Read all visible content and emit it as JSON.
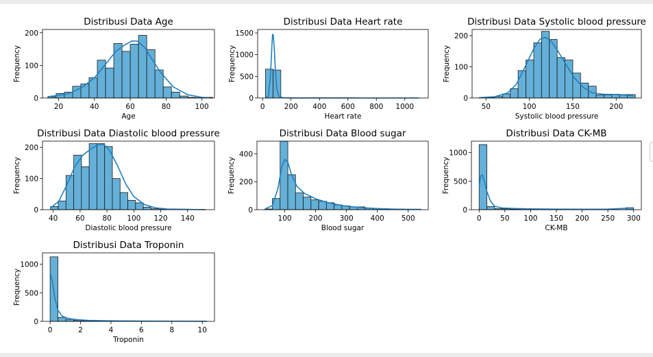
{
  "chart_data": [
    {
      "type": "bar",
      "title": "Distribusi Data Age",
      "xlabel": "Age",
      "ylabel": "Frequency",
      "xlim": [
        11,
        107
      ],
      "ylim": [
        0,
        210
      ],
      "xticks": [
        20,
        40,
        60,
        80,
        100
      ],
      "yticks": [
        0,
        100,
        200
      ],
      "bin_edges": [
        14,
        18.6,
        23.2,
        27.8,
        32.4,
        37,
        41.6,
        46.2,
        50.8,
        55.4,
        60,
        64.6,
        69.2,
        73.8,
        78.4,
        83,
        87.6,
        92.2,
        96.8,
        101.4,
        106
      ],
      "values": [
        4,
        14,
        18,
        36,
        43,
        62,
        116,
        92,
        167,
        143,
        165,
        192,
        148,
        86,
        34,
        18,
        6,
        2,
        1,
        2
      ],
      "kde": {
        "x": [
          14,
          25,
          33,
          40,
          46,
          52,
          57,
          61,
          64,
          68,
          72,
          77,
          84,
          92,
          100,
          104
        ],
        "y": [
          4,
          12,
          32,
          62,
          102,
          143,
          163,
          175,
          174,
          155,
          120,
          78,
          34,
          10,
          2,
          1
        ]
      }
    },
    {
      "type": "bar",
      "title": "Distribusi Data Heart rate",
      "xlabel": "Heart rate",
      "ylabel": "Frequency",
      "xlim": [
        -35,
        1165
      ],
      "ylim": [
        0,
        1580
      ],
      "xticks": [
        0,
        200,
        400,
        600,
        800,
        1000
      ],
      "yticks": [
        0,
        500,
        1000,
        1500
      ],
      "bin_edges": [
        20,
        74,
        128,
        182,
        236,
        290,
        344,
        398,
        452,
        506,
        560,
        614,
        668,
        722,
        776,
        830,
        884,
        938,
        992,
        1046,
        1100
      ],
      "values": [
        665,
        645,
        0,
        0,
        0,
        0,
        0,
        0,
        0,
        0,
        0,
        0,
        0,
        0,
        0,
        0,
        0,
        0,
        0,
        0
      ],
      "kde": {
        "x": [
          20,
          40,
          55,
          65,
          70,
          75,
          82,
          90,
          100,
          115,
          140,
          200,
          400,
          700,
          1100
        ],
        "y": [
          0,
          40,
          500,
          1200,
          1470,
          1450,
          1150,
          650,
          200,
          40,
          8,
          2,
          1,
          0,
          0
        ]
      }
    },
    {
      "type": "bar",
      "title": "Distribusi Data Systolic blood pressure",
      "xlabel": "Systolic blood pressure",
      "ylabel": "Frequency",
      "xlim": [
        34,
        229
      ],
      "ylim": [
        0,
        220
      ],
      "xticks": [
        50,
        100,
        150,
        200
      ],
      "yticks": [
        0,
        100,
        200
      ],
      "bin_edges": [
        42,
        51,
        60,
        69,
        78,
        87,
        96,
        105,
        114,
        123,
        132,
        141,
        150,
        159,
        168,
        177,
        186,
        195,
        204,
        213,
        222
      ],
      "values": [
        1,
        2,
        5,
        13,
        30,
        88,
        122,
        177,
        214,
        188,
        130,
        122,
        80,
        48,
        38,
        10,
        10,
        12,
        11,
        11
      ],
      "kde": {
        "x": [
          42,
          60,
          75,
          85,
          95,
          105,
          112,
          118,
          124,
          132,
          142,
          152,
          162,
          172,
          185,
          200,
          212,
          220
        ],
        "y": [
          1,
          4,
          16,
          44,
          100,
          158,
          188,
          195,
          186,
          155,
          108,
          64,
          34,
          17,
          12,
          11,
          9,
          6
        ]
      }
    },
    {
      "type": "bar",
      "title": "Distribusi Data Diastolic blood pressure",
      "xlabel": "Diastolic blood pressure",
      "ylabel": "Frequency",
      "xlim": [
        32,
        160
      ],
      "ylim": [
        0,
        220
      ],
      "xticks": [
        40,
        60,
        80,
        100,
        120,
        140
      ],
      "yticks": [
        0,
        100,
        200
      ],
      "bin_edges": [
        38,
        43.75,
        49.5,
        55.25,
        61,
        66.75,
        72.5,
        78.25,
        84,
        89.75,
        95.5,
        101.25,
        107,
        112.75,
        118.5,
        124.25,
        130,
        135.75,
        141.5,
        147.25,
        153
      ],
      "values": [
        10,
        28,
        110,
        175,
        138,
        212,
        212,
        203,
        100,
        55,
        30,
        22,
        8,
        3,
        1,
        0,
        0,
        0,
        0,
        1
      ],
      "kde": {
        "x": [
          38,
          44,
          50,
          56,
          62,
          68,
          74,
          78,
          82,
          88,
          94,
          100,
          108,
          116,
          125,
          140,
          153
        ],
        "y": [
          6,
          26,
          78,
          138,
          175,
          195,
          210,
          208,
          190,
          140,
          82,
          42,
          16,
          6,
          2,
          1,
          0
        ]
      }
    },
    {
      "type": "bar",
      "title": "Distribusi Data Blood sugar",
      "xlabel": "Blood sugar",
      "ylabel": "Frequency",
      "xlim": [
        10,
        565
      ],
      "ylim": [
        0,
        490
      ],
      "xticks": [
        100,
        200,
        300,
        400,
        500
      ],
      "yticks": [
        0,
        200,
        400
      ],
      "bin_edges": [
        35,
        60,
        85,
        110,
        135,
        160,
        185,
        210,
        235,
        260,
        285,
        310,
        335,
        360,
        385,
        410,
        435,
        460,
        485,
        510,
        541
      ],
      "values": [
        5,
        80,
        490,
        250,
        120,
        90,
        70,
        60,
        50,
        35,
        28,
        20,
        20,
        10,
        8,
        8,
        5,
        5,
        3,
        3
      ],
      "kde": {
        "x": [
          35,
          60,
          78,
          90,
          100,
          110,
          122,
          140,
          165,
          200,
          240,
          290,
          350,
          420,
          480,
          541
        ],
        "y": [
          3,
          30,
          150,
          300,
          360,
          340,
          250,
          165,
          115,
          78,
          50,
          28,
          14,
          6,
          3,
          2
        ]
      }
    },
    {
      "type": "bar",
      "title": "Distribusi Data CK-MB",
      "xlabel": "CK-MB",
      "ylabel": "Frequency",
      "xlim": [
        -15,
        315
      ],
      "ylim": [
        0,
        1200
      ],
      "xticks": [
        0,
        50,
        100,
        150,
        200,
        250,
        300
      ],
      "yticks": [
        0,
        500,
        1000
      ],
      "bin_edges": [
        0,
        15,
        30,
        45,
        60,
        75,
        90,
        105,
        120,
        135,
        150,
        165,
        180,
        195,
        210,
        225,
        240,
        255,
        270,
        285,
        300
      ],
      "values": [
        1140,
        55,
        20,
        15,
        10,
        8,
        8,
        6,
        6,
        6,
        4,
        4,
        3,
        3,
        2,
        2,
        2,
        2,
        2,
        35
      ],
      "kde": {
        "x": [
          0,
          3,
          6,
          10,
          15,
          22,
          30,
          45,
          70,
          100,
          150,
          200,
          250,
          285,
          300
        ],
        "y": [
          400,
          590,
          610,
          500,
          320,
          150,
          60,
          30,
          20,
          15,
          10,
          8,
          10,
          25,
          30
        ]
      }
    },
    {
      "type": "bar",
      "title": "Distribusi Data Troponin",
      "xlabel": "Troponin",
      "ylabel": "Frequency",
      "xlim": [
        -0.5,
        10.8
      ],
      "ylim": [
        0,
        1200
      ],
      "xticks": [
        0,
        2,
        4,
        6,
        8,
        10
      ],
      "yticks": [
        0,
        500,
        1000
      ],
      "bin_edges": [
        0,
        0.515,
        1.03,
        1.545,
        2.06,
        2.575,
        3.09,
        3.605,
        4.12,
        4.635,
        5.15,
        5.665,
        6.18,
        6.695,
        7.21,
        7.725,
        8.24,
        8.755,
        9.27,
        9.785,
        10.3
      ],
      "values": [
        1130,
        70,
        35,
        20,
        12,
        8,
        6,
        5,
        4,
        3,
        3,
        2,
        2,
        2,
        2,
        1,
        1,
        1,
        1,
        2
      ],
      "kde": {
        "x": [
          0,
          0.05,
          0.15,
          0.3,
          0.5,
          0.8,
          1.2,
          1.8,
          2.5,
          4,
          6,
          8,
          10.3
        ],
        "y": [
          820,
          810,
          700,
          430,
          200,
          90,
          50,
          30,
          18,
          10,
          6,
          4,
          3
        ]
      }
    }
  ],
  "style": {
    "bar_fill": "#64b0d8",
    "bar_edge": "#1a1a1a",
    "kde_color": "#1f7fbf"
  }
}
